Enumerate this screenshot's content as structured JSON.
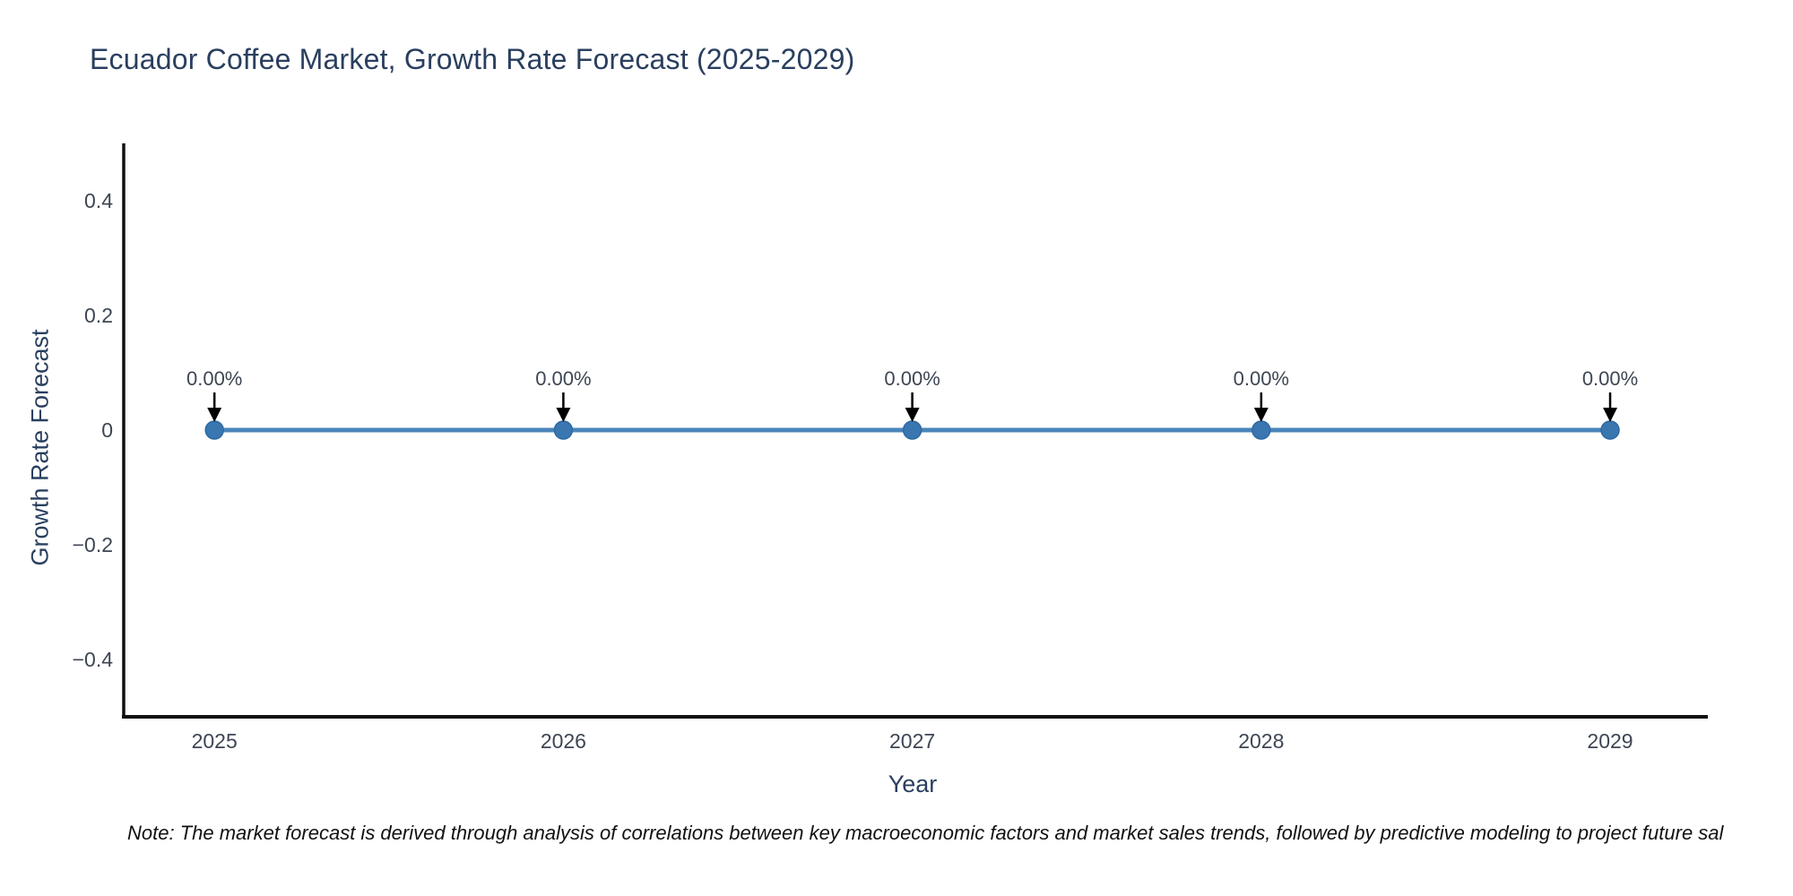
{
  "note": "Note: The market forecast is derived through analysis of correlations between key macroeconomic factors and market sales trends, followed by predictive modeling to project future sal",
  "chart_data": {
    "type": "line",
    "title": "Ecuador Coffee Market, Growth Rate Forecast (2025-2029)",
    "xlabel": "Year",
    "ylabel": "Growth Rate Forecast",
    "x": [
      2025,
      2026,
      2027,
      2028,
      2029
    ],
    "categories": [
      "2025",
      "2026",
      "2027",
      "2028",
      "2029"
    ],
    "values": [
      0,
      0,
      0,
      0,
      0
    ],
    "point_labels": [
      "0.00%",
      "0.00%",
      "0.00%",
      "0.00%",
      "0.00%"
    ],
    "xlim": [
      2024.74,
      2029.28
    ],
    "ylim": [
      -0.5,
      0.5
    ],
    "ytick_values": [
      0.4,
      0.2,
      0,
      -0.2,
      -0.4
    ],
    "ytick_labels": [
      "0.4",
      "0.2",
      "0",
      "−0.2",
      "−0.4"
    ],
    "grid": false,
    "legend": "none",
    "colors": {
      "text": "#2a3f5f",
      "tick": "#3d4653",
      "line": "#4a86ba",
      "marker": "#3a76af",
      "marker_edge": "#2e6aa3",
      "arrow": "#000000",
      "spine": "#111111"
    }
  }
}
